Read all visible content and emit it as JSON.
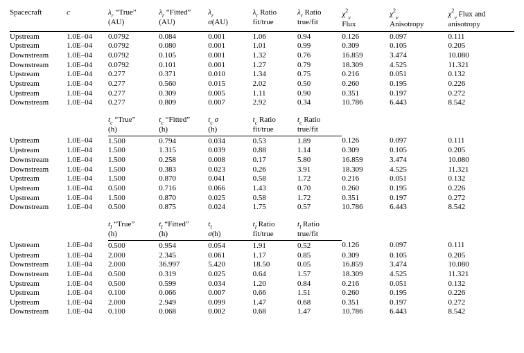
{
  "colors": {
    "text": "#000000",
    "background": "#ffffff",
    "rule": "#000000"
  },
  "fontsize_pt": 8.5,
  "header": {
    "c1": "Spacecraft",
    "c2": "c",
    "c3a": "λ_r “True”",
    "c3b": "(AU)",
    "c4a": "λ_r “Fitted”",
    "c4b": "(AU)",
    "c5a": "λ_r",
    "c5b": "σ(AU)",
    "c6a": "λ_r Ratio",
    "c6b": "fit/true",
    "c7a": "λ_r Ratio",
    "c7b": "true/fit",
    "c8a": "χ²_v",
    "c8b": "Flux",
    "c9a": "χ²_v",
    "c9b": "Anisotropy",
    "c10a": "χ²_v Flux and",
    "c10b": "anisotropy"
  },
  "sub2": {
    "c3a": "t_c “True”",
    "c3b": "(h)",
    "c4a": "t_c “Fitted”",
    "c4b": "(h)",
    "c5a": "t_c σ",
    "c5b": "(h)",
    "c6a": "t_c Ratio",
    "c6b": "fit/true",
    "c7a": "t_c Ratio",
    "c7b": "true/fit"
  },
  "sub3": {
    "c3a": "t_l “True”",
    "c3b": "(h)",
    "c4a": "t_l “Fitted”",
    "c4b": "(h)",
    "c5a": "t_l",
    "c5b": "σ(h)",
    "c6a": "t_l Ratio",
    "c6b": "fit/true",
    "c7a": "t_l Ratio",
    "c7b": "true/fit"
  },
  "block1": [
    [
      "Upstream",
      "1.0E–04",
      "0.0792",
      "0.084",
      "0.001",
      "1.06",
      "0.94",
      "0.126",
      "0.097",
      "0.111"
    ],
    [
      "Upstream",
      "1.0E–04",
      "0.0792",
      "0.080",
      "0.001",
      "1.01",
      "0.99",
      "0.309",
      "0.105",
      "0.205"
    ],
    [
      "Downstream",
      "1.0E–04",
      "0.0792",
      "0.105",
      "0.001",
      "1.32",
      "0.76",
      "16.859",
      "3.474",
      "10.080"
    ],
    [
      "Downstream",
      "1.0E–04",
      "0.0792",
      "0.101",
      "0.001",
      "1.27",
      "0.79",
      "18.309",
      "4.525",
      "11.321"
    ],
    [
      "Upstream",
      "1.0E–04",
      "0.277",
      "0.371",
      "0.010",
      "1.34",
      "0.75",
      "0.216",
      "0.051",
      "0.132"
    ],
    [
      "Upstream",
      "1.0E–04",
      "0.277",
      "0.560",
      "0.015",
      "2.02",
      "0.50",
      "0.260",
      "0.195",
      "0.226"
    ],
    [
      "Upstream",
      "1.0E–04",
      "0.277",
      "0.309",
      "0.005",
      "1.11",
      "0.90",
      "0.351",
      "0.197",
      "0.272"
    ],
    [
      "Downstream",
      "1.0E–04",
      "0.277",
      "0.809",
      "0.007",
      "2.92",
      "0.34",
      "10.786",
      "6.443",
      "8.542"
    ]
  ],
  "block2": [
    [
      "Upstream",
      "1.0E–04",
      "1.500",
      "0.794",
      "0.034",
      "0.53",
      "1.89",
      "0.126",
      "0.097",
      "0.111"
    ],
    [
      "Upstream",
      "1.0E–04",
      "1.500",
      "1.315",
      "0.039",
      "0.88",
      "1.14",
      "0.309",
      "0.105",
      "0.205"
    ],
    [
      "Downstream",
      "1.0E–04",
      "1.500",
      "0.258",
      "0.008",
      "0.17",
      "5.80",
      "16.859",
      "3.474",
      "10.080"
    ],
    [
      "Downstream",
      "1.0E–04",
      "1.500",
      "0.383",
      "0.023",
      "0.26",
      "3.91",
      "18.309",
      "4.525",
      "11.321"
    ],
    [
      "Upstream",
      "1.0E–04",
      "1.500",
      "0.870",
      "0.041",
      "0.58",
      "1.72",
      "0.216",
      "0.051",
      "0.132"
    ],
    [
      "Upstream",
      "1.0E–04",
      "0.500",
      "0.716",
      "0.066",
      "1.43",
      "0.70",
      "0.260",
      "0.195",
      "0.226"
    ],
    [
      "Upstream",
      "1.0E–04",
      "1.500",
      "0.870",
      "0.025",
      "0.58",
      "1.72",
      "0.351",
      "0.197",
      "0.272"
    ],
    [
      "Downstream",
      "1.0E–04",
      "0.500",
      "0.875",
      "0.024",
      "1.75",
      "0.57",
      "10.786",
      "6.443",
      "8.542"
    ]
  ],
  "block3": [
    [
      "Upstream",
      "1.0E–04",
      "0.500",
      "0.954",
      "0.054",
      "1.91",
      "0.52",
      "0.126",
      "0.097",
      "0.111"
    ],
    [
      "Upstream",
      "1.0E–04",
      "2.000",
      "2.345",
      "0.061",
      "1.17",
      "0.85",
      "0.309",
      "0.105",
      "0.205"
    ],
    [
      "Downstream",
      "1.0E–04",
      "2.000",
      "36.997",
      "5.420",
      "18.50",
      "0.05",
      "16.859",
      "3.474",
      "10.080"
    ],
    [
      "Downstream",
      "1.0E–04",
      "0.500",
      "0.319",
      "0.025",
      "0.64",
      "1.57",
      "18.309",
      "4.525",
      "11.321"
    ],
    [
      "Upstream",
      "1.0E–04",
      "0.500",
      "0.599",
      "0.034",
      "1.20",
      "0.84",
      "0.216",
      "0.051",
      "0.132"
    ],
    [
      "Upstream",
      "1.0E–04",
      "0.100",
      "0.066",
      "0.007",
      "0.66",
      "1.51",
      "0.260",
      "0.195",
      "0.226"
    ],
    [
      "Upstream",
      "1.0E–04",
      "2.000",
      "2.949",
      "0.099",
      "1.47",
      "0.68",
      "0.351",
      "0.197",
      "0.272"
    ],
    [
      "Downstream",
      "1.0E–04",
      "0.100",
      "0.068",
      "0.002",
      "0.68",
      "1.47",
      "10.786",
      "6.443",
      "8.542"
    ]
  ]
}
